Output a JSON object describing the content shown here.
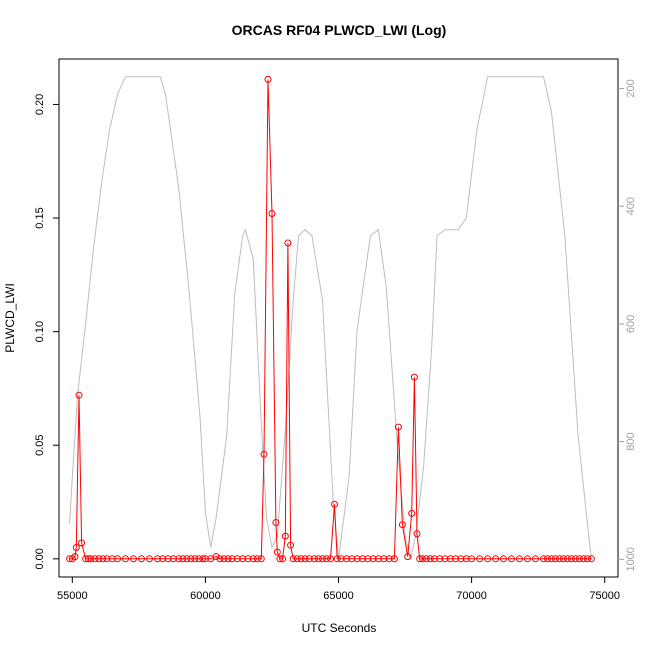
{
  "chart_data": {
    "type": "line",
    "title": "ORCAS RF04 PLWCD_LWI (Log)",
    "xlabel": "UTC Seconds",
    "ylabel": "PLWCD_LWI",
    "xlim": [
      54500,
      75500
    ],
    "ylim": [
      -0.008,
      0.22
    ],
    "y2lim": [
      1030,
      150
    ],
    "x_ticks": [
      55000,
      60000,
      65000,
      70000,
      75000
    ],
    "y_ticks": [
      0.0,
      0.05,
      0.1,
      0.15,
      0.2
    ],
    "y_tick_labels": [
      "0.00",
      "0.05",
      "0.10",
      "0.15",
      "0.20"
    ],
    "y2_ticks": [
      200,
      400,
      600,
      800,
      1000
    ],
    "colors": {
      "series": "#ff0000",
      "altitude": "#bdbdbd",
      "axis": "#000000",
      "right_axis": "#a0a0a0"
    },
    "series": [
      {
        "values": [
          [
            54900,
            0.0
          ],
          [
            55000,
            0.0
          ],
          [
            55100,
            0.001
          ],
          [
            55150,
            0.005
          ],
          [
            55250,
            0.072
          ],
          [
            55350,
            0.007
          ],
          [
            55500,
            0.0
          ],
          [
            55600,
            0.0
          ],
          [
            55700,
            0.0
          ],
          [
            55850,
            0.0
          ],
          [
            56000,
            0.0
          ],
          [
            56150,
            0.0
          ],
          [
            56300,
            0.0
          ],
          [
            56500,
            0.0
          ],
          [
            56700,
            0.0
          ],
          [
            57000,
            0.0
          ],
          [
            57300,
            0.0
          ],
          [
            57600,
            0.0
          ],
          [
            57900,
            0.0
          ],
          [
            58200,
            0.0
          ],
          [
            58400,
            0.0
          ],
          [
            58600,
            0.0
          ],
          [
            58800,
            0.0
          ],
          [
            59000,
            0.0
          ],
          [
            59150,
            0.0
          ],
          [
            59300,
            0.0
          ],
          [
            59450,
            0.0
          ],
          [
            59600,
            0.0
          ],
          [
            59750,
            0.0
          ],
          [
            59900,
            0.0
          ],
          [
            60000,
            0.0
          ],
          [
            60200,
            0.0
          ],
          [
            60400,
            0.001
          ],
          [
            60550,
            0.0
          ],
          [
            60700,
            0.0
          ],
          [
            60850,
            0.0
          ],
          [
            61000,
            0.0
          ],
          [
            61200,
            0.0
          ],
          [
            61400,
            0.0
          ],
          [
            61600,
            0.0
          ],
          [
            61800,
            0.0
          ],
          [
            61950,
            0.0
          ],
          [
            62100,
            0.0
          ],
          [
            62200,
            0.046
          ],
          [
            62350,
            0.211
          ],
          [
            62500,
            0.152
          ],
          [
            62650,
            0.016
          ],
          [
            62700,
            0.003
          ],
          [
            62800,
            0.0
          ],
          [
            62900,
            0.0
          ],
          [
            63000,
            0.01
          ],
          [
            63100,
            0.139
          ],
          [
            63200,
            0.006
          ],
          [
            63300,
            0.0
          ],
          [
            63450,
            0.0
          ],
          [
            63600,
            0.0
          ],
          [
            63750,
            0.0
          ],
          [
            63900,
            0.0
          ],
          [
            64100,
            0.0
          ],
          [
            64250,
            0.0
          ],
          [
            64400,
            0.0
          ],
          [
            64550,
            0.0
          ],
          [
            64700,
            0.0
          ],
          [
            64850,
            0.024
          ],
          [
            64950,
            0.0
          ],
          [
            65100,
            0.0
          ],
          [
            65300,
            0.0
          ],
          [
            65500,
            0.0
          ],
          [
            65700,
            0.0
          ],
          [
            65900,
            0.0
          ],
          [
            66100,
            0.0
          ],
          [
            66300,
            0.0
          ],
          [
            66500,
            0.0
          ],
          [
            66700,
            0.0
          ],
          [
            66900,
            0.0
          ],
          [
            67100,
            0.0
          ],
          [
            67250,
            0.058
          ],
          [
            67400,
            0.015
          ],
          [
            67600,
            0.001
          ],
          [
            67750,
            0.02
          ],
          [
            67850,
            0.08
          ],
          [
            67950,
            0.011
          ],
          [
            68050,
            0.0
          ],
          [
            68150,
            0.0
          ],
          [
            68300,
            0.0
          ],
          [
            68450,
            0.0
          ],
          [
            68600,
            0.0
          ],
          [
            68800,
            0.0
          ],
          [
            69000,
            0.0
          ],
          [
            69200,
            0.0
          ],
          [
            69400,
            0.0
          ],
          [
            69600,
            0.0
          ],
          [
            69800,
            0.0
          ],
          [
            70000,
            0.0
          ],
          [
            70300,
            0.0
          ],
          [
            70600,
            0.0
          ],
          [
            70900,
            0.0
          ],
          [
            71200,
            0.0
          ],
          [
            71500,
            0.0
          ],
          [
            71800,
            0.0
          ],
          [
            72100,
            0.0
          ],
          [
            72400,
            0.0
          ],
          [
            72700,
            0.0
          ],
          [
            72850,
            0.0
          ],
          [
            73000,
            0.0
          ],
          [
            73150,
            0.0
          ],
          [
            73300,
            0.0
          ],
          [
            73450,
            0.0
          ],
          [
            73600,
            0.0
          ],
          [
            73750,
            0.0
          ],
          [
            73900,
            0.0
          ],
          [
            74050,
            0.0
          ],
          [
            74200,
            0.0
          ],
          [
            74350,
            0.0
          ],
          [
            74500,
            0.0
          ]
        ]
      },
      {
        "axis": "right",
        "values": [
          [
            54900,
            940
          ],
          [
            55000,
            860
          ],
          [
            55200,
            720
          ],
          [
            55500,
            600
          ],
          [
            55800,
            470
          ],
          [
            56100,
            360
          ],
          [
            56400,
            270
          ],
          [
            56700,
            210
          ],
          [
            57000,
            180
          ],
          [
            58300,
            180
          ],
          [
            58500,
            210
          ],
          [
            59000,
            370
          ],
          [
            59400,
            550
          ],
          [
            59800,
            760
          ],
          [
            60000,
            920
          ],
          [
            60200,
            980
          ],
          [
            60400,
            930
          ],
          [
            60800,
            790
          ],
          [
            61100,
            550
          ],
          [
            61400,
            450
          ],
          [
            61500,
            440
          ],
          [
            61800,
            490
          ],
          [
            62100,
            770
          ],
          [
            62300,
            930
          ],
          [
            62500,
            980
          ],
          [
            62700,
            960
          ],
          [
            63000,
            780
          ],
          [
            63300,
            560
          ],
          [
            63500,
            450
          ],
          [
            63750,
            440
          ],
          [
            64000,
            450
          ],
          [
            64400,
            560
          ],
          [
            64800,
            900
          ],
          [
            65000,
            1000
          ],
          [
            65400,
            860
          ],
          [
            65700,
            610
          ],
          [
            66200,
            450
          ],
          [
            66500,
            440
          ],
          [
            66800,
            540
          ],
          [
            67200,
            800
          ],
          [
            67500,
            960
          ],
          [
            67700,
            1000
          ],
          [
            67900,
            960
          ],
          [
            68200,
            840
          ],
          [
            68500,
            640
          ],
          [
            68700,
            450
          ],
          [
            69000,
            440
          ],
          [
            69500,
            440
          ],
          [
            69800,
            420
          ],
          [
            70200,
            270
          ],
          [
            70600,
            180
          ],
          [
            72700,
            180
          ],
          [
            73000,
            240
          ],
          [
            73500,
            450
          ],
          [
            74000,
            790
          ],
          [
            74400,
            960
          ],
          [
            74500,
            1000
          ]
        ]
      }
    ]
  }
}
